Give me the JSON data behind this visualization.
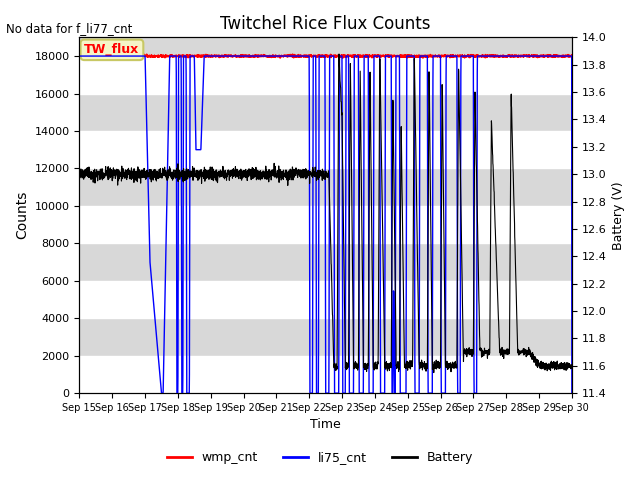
{
  "title": "Twitchel Rice Flux Counts",
  "no_data_text": "No data for f_li77_cnt",
  "tw_flux_label": "TW_flux",
  "xlabel": "Time",
  "ylabel_left": "Counts",
  "ylabel_right": "Battery (V)",
  "ylim_left": [
    0,
    19000
  ],
  "ylim_right": [
    11.4,
    14.0
  ],
  "yticks_left": [
    0,
    2000,
    4000,
    6000,
    8000,
    10000,
    12000,
    14000,
    16000,
    18000
  ],
  "yticks_right": [
    11.4,
    11.6,
    11.8,
    12.0,
    12.2,
    12.4,
    12.6,
    12.8,
    13.0,
    13.2,
    13.4,
    13.6,
    13.8,
    14.0
  ],
  "xtick_labels": [
    "Sep 15",
    "Sep 16",
    "Sep 17",
    "Sep 18",
    "Sep 19",
    "Sep 20",
    "Sep 21",
    "Sep 22",
    "Sep 23",
    "Sep 24",
    "Sep 25",
    "Sep 26",
    "Sep 27",
    "Sep 28",
    "Sep 29",
    "Sep 30"
  ],
  "bg_color_dark": "#d8d8d8",
  "bg_color_light": "#e8e8e8",
  "grid_color": "white",
  "wmp_color": "red",
  "li75_color": "blue",
  "battery_color": "black",
  "annotation_box_color": "#f5f5c8",
  "annotation_box_edge": "#c8c864"
}
